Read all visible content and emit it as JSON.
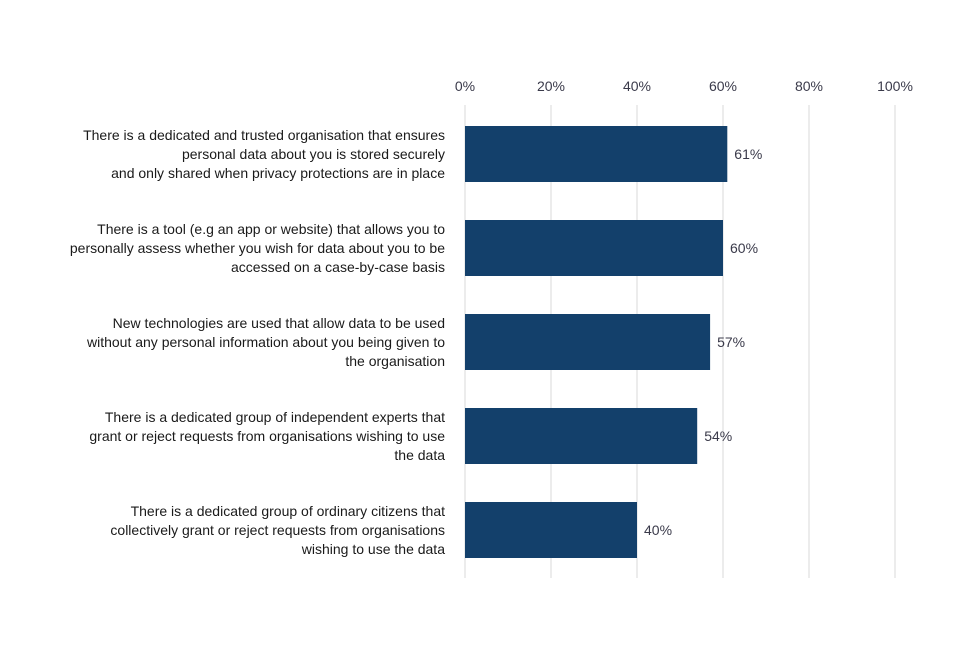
{
  "chart_data": {
    "type": "bar",
    "orientation": "horizontal",
    "title": "",
    "xlabel": "",
    "ylabel": "",
    "xlim": [
      0,
      100
    ],
    "ticks": [
      0,
      20,
      40,
      60,
      80,
      100
    ],
    "tick_labels": [
      "0%",
      "20%",
      "40%",
      "60%",
      "80%",
      "100%"
    ],
    "grid": true,
    "legend": "none",
    "bar_color": "#13406b",
    "categories": [
      [
        "There is a dedicated and trusted organisation that ensures",
        "personal data about you is stored securely",
        "and only shared when privacy protections are in place"
      ],
      [
        "There is a tool (e.g an app or website) that allows you to",
        "personally assess  whether you wish for data about you to be",
        "accessed on a case-by-case basis"
      ],
      [
        "New technologies are used that allow data to be used",
        "without any personal information about you being given to",
        "the organisation"
      ],
      [
        "There is a dedicated group of independent experts that",
        "grant or reject requests from organisations wishing to use",
        "the data"
      ],
      [
        "There is a dedicated group of ordinary citizens that",
        "collectively grant or reject requests  from organisations",
        "wishing to use the data"
      ]
    ],
    "values": [
      61,
      60,
      57,
      54,
      40
    ],
    "data_labels": [
      "61%",
      "60%",
      "57%",
      "54%",
      "40%"
    ]
  }
}
